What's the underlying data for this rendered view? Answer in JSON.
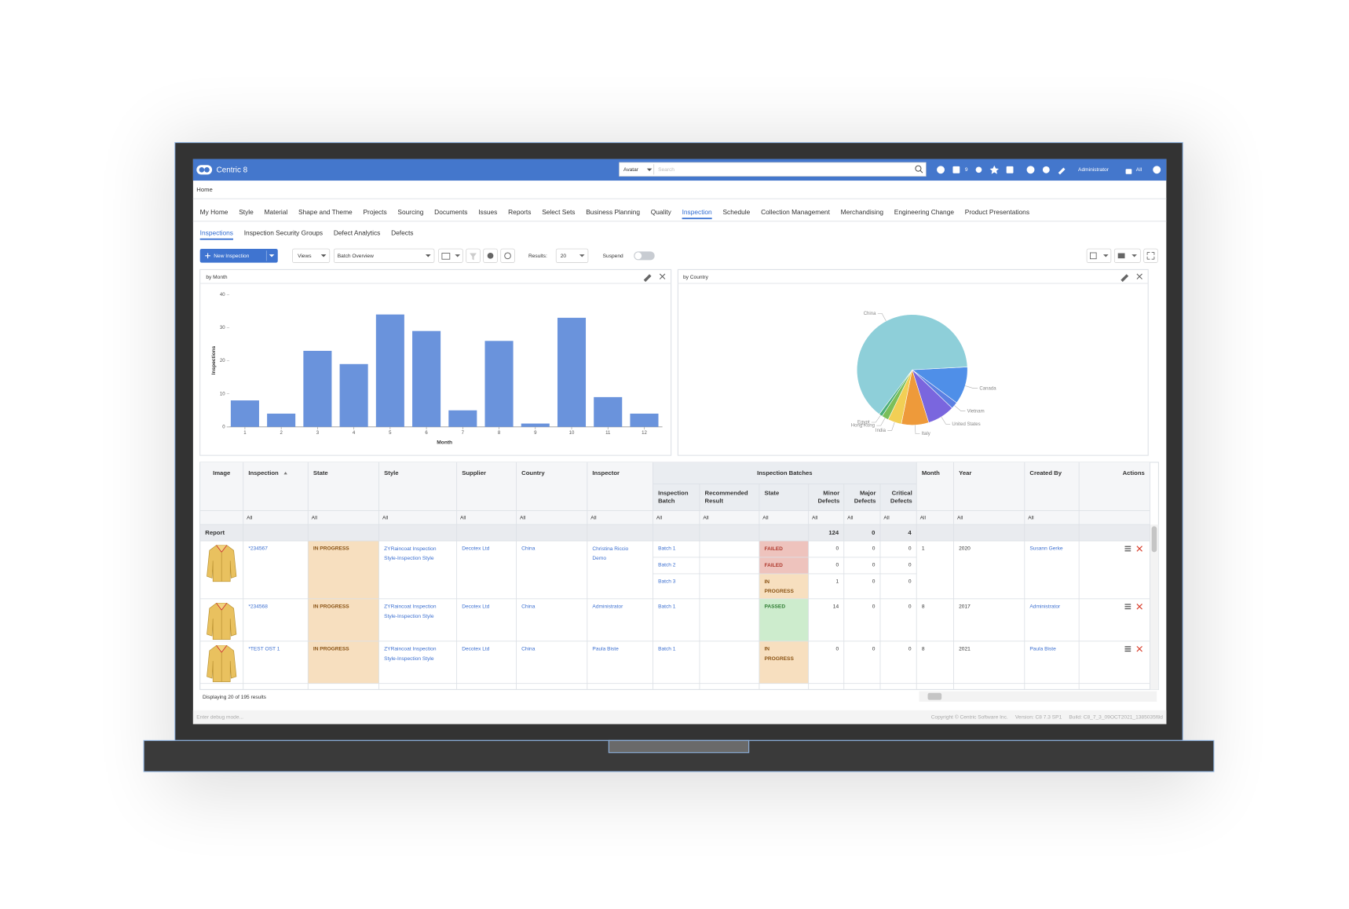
{
  "app": {
    "brand": "Centric 8",
    "search_scope": "Avatar",
    "search_placeholder": "Search",
    "badge": "9",
    "user": "Administrator",
    "scope": "All"
  },
  "breadcrumb": "Home",
  "menu": [
    {
      "label": "My Home"
    },
    {
      "label": "Style"
    },
    {
      "label": "Material"
    },
    {
      "label": "Shape and Theme"
    },
    {
      "label": "Projects"
    },
    {
      "label": "Sourcing"
    },
    {
      "label": "Documents"
    },
    {
      "label": "Issues"
    },
    {
      "label": "Reports"
    },
    {
      "label": "Select Sets"
    },
    {
      "label": "Business Planning"
    },
    {
      "label": "Quality"
    },
    {
      "label": "Inspection",
      "selected": true
    },
    {
      "label": "Schedule"
    },
    {
      "label": "Collection Management"
    },
    {
      "label": "Merchandising"
    },
    {
      "label": "Engineering Change"
    },
    {
      "label": "Product Presentations"
    }
  ],
  "subtabs": [
    {
      "label": "Inspections",
      "selected": true
    },
    {
      "label": "Inspection Security Groups"
    },
    {
      "label": "Defect Analytics"
    },
    {
      "label": "Defects"
    }
  ],
  "toolbar": {
    "new_button": "New Inspection",
    "views": "Views",
    "view_name": "Batch Overview",
    "results_label": "Results:",
    "results": "20",
    "suspend": "Suspend"
  },
  "chart_data": [
    {
      "type": "bar",
      "title": "by Month",
      "y_label": "Inspections",
      "x_label": "Month",
      "categories": [
        "1",
        "2",
        "3",
        "4",
        "5",
        "6",
        "7",
        "8",
        "9",
        "10",
        "11",
        "12"
      ],
      "values": [
        8,
        4,
        23,
        19,
        34,
        29,
        5,
        26,
        1,
        33,
        9,
        4
      ],
      "color": "#6a93dc",
      "ylim": [
        0,
        40
      ],
      "yticks": [
        0,
        10,
        20,
        30,
        40
      ]
    },
    {
      "type": "pie",
      "title": "by Country",
      "categories": [
        "Canada",
        "Vietnam",
        "United States",
        "Italy",
        "India",
        "Hong Kong",
        "Egypt",
        "China"
      ],
      "values": [
        11,
        2,
        8,
        8,
        4,
        2,
        1,
        64
      ],
      "colors": [
        "#4f8fe8",
        "#5b7fe2",
        "#7a66de",
        "#ee9a3a",
        "#f2cf55",
        "#7bbf5a",
        "#4caf7a",
        "#8ecfd9"
      ]
    }
  ],
  "table": {
    "group_header": "Inspection Batches",
    "columns": [
      "Image",
      "Inspection",
      "State",
      "Style",
      "Supplier",
      "Country",
      "Inspector",
      "Inspection Batch",
      "Recommended Result",
      "State",
      "Minor Defects",
      "Major Defects",
      "Critical Defects",
      "Month",
      "Year",
      "Created By",
      "Actions"
    ],
    "filter": "All",
    "report_label": "Report",
    "report_totals": [
      124,
      0,
      4
    ],
    "status_styles": {
      "IN PROGRESS": {
        "bg": "#f7dfbf",
        "fg": "#8a5314"
      },
      "FAILED": {
        "bg": "#eec3bd",
        "fg": "#b03a2e"
      },
      "PASSED": {
        "bg": "#cdeccd",
        "fg": "#2e7d32"
      }
    },
    "rows": [
      {
        "inspection": "*234567",
        "state": "IN PROGRESS",
        "style": "ZYRaincoat Inspection Style-Inspection Style",
        "supplier": "Decotex Ltd",
        "country": "China",
        "inspector": "Christina Riccio Demo",
        "batches": [
          {
            "batch": "Batch 1",
            "state": "FAILED",
            "minor": 0,
            "major": 0,
            "critical": 0
          },
          {
            "batch": "Batch 2",
            "state": "FAILED",
            "minor": 0,
            "major": 0,
            "critical": 0
          },
          {
            "batch": "Batch 3",
            "state": "IN PROGRESS",
            "minor": 1,
            "major": 0,
            "critical": 0
          }
        ],
        "month": 1,
        "year": 2020,
        "created_by": "Susann Gerke"
      },
      {
        "inspection": "*234568",
        "state": "IN PROGRESS",
        "style": "ZYRaincoat Inspection Style-Inspection Style",
        "supplier": "Decotex Ltd",
        "country": "China",
        "inspector": "Administrator",
        "batches": [
          {
            "batch": "Batch 1",
            "state": "PASSED",
            "minor": 14,
            "major": 0,
            "critical": 0
          }
        ],
        "month": 8,
        "year": 2017,
        "created_by": "Administrator"
      },
      {
        "inspection": "*TEST OST 1",
        "state": "IN PROGRESS",
        "style": "ZYRaincoat Inspection Style-Inspection Style",
        "supplier": "Decotex Ltd",
        "country": "China",
        "inspector": "Paula Biste",
        "batches": [
          {
            "batch": "Batch 1",
            "state": "IN PROGRESS",
            "minor": 0,
            "major": 0,
            "critical": 0
          }
        ],
        "month": 8,
        "year": 2021,
        "created_by": "Paula Biste"
      }
    ],
    "summary": "Displaying 20 of 195 results"
  },
  "footer": {
    "debug": "Enter debug mode...",
    "copyright": "Copyright © Centric Software Inc.     Version: C8 7.3 SP1     Build: C8_7_3_09OCT2021_1385035f8d"
  }
}
